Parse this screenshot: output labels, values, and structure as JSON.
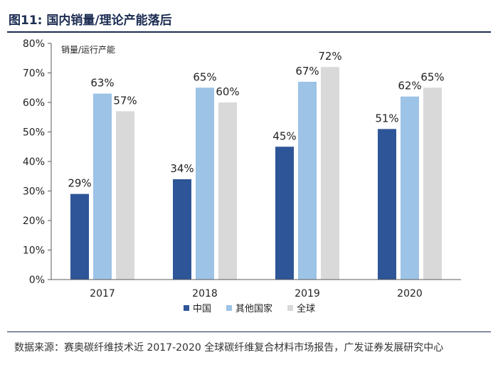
{
  "figure": {
    "title": "图11: 国内销量/理论产能落后",
    "source": "数据来源：赛奥碳纤维技术近 2017-2020 全球碳纤维复合材料市场报告，广发证券发展研究中心"
  },
  "chart_data": {
    "type": "bar",
    "title": "销量/运行产能",
    "categories": [
      "2017",
      "2018",
      "2019",
      "2020"
    ],
    "series": [
      {
        "name": "中国",
        "values": [
          29,
          34,
          45,
          51
        ],
        "color": "#2e5597"
      },
      {
        "name": "其他国家",
        "values": [
          63,
          65,
          67,
          62
        ],
        "color": "#9dc3e6"
      },
      {
        "name": "全球",
        "values": [
          57,
          60,
          72,
          65
        ],
        "color": "#d9d9d9"
      }
    ],
    "data_labels": [
      [
        "29%",
        "34%",
        "45%",
        "51%"
      ],
      [
        "63%",
        "65%",
        "67%",
        "62%"
      ],
      [
        "57%",
        "60%",
        "72%",
        "65%"
      ]
    ],
    "yticks": [
      0,
      10,
      20,
      30,
      40,
      50,
      60,
      70,
      80
    ],
    "ytick_labels": [
      "0%",
      "10%",
      "20%",
      "30%",
      "40%",
      "50%",
      "60%",
      "70%",
      "80%"
    ],
    "ylim": [
      0,
      80
    ],
    "xlabel": "",
    "ylabel": "",
    "grid": false,
    "legend_position": "bottom"
  }
}
